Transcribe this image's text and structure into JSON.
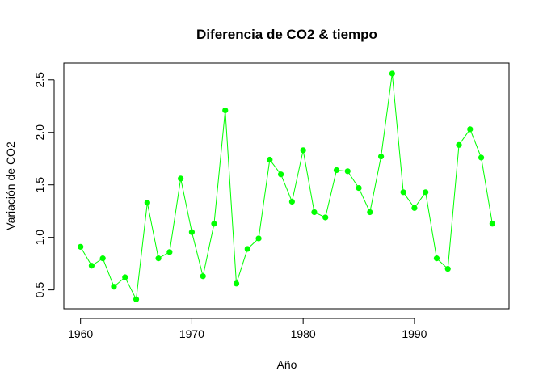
{
  "chart_data": {
    "type": "line",
    "title": "Diferencia de CO2 & tiempo",
    "xlabel": "Año",
    "ylabel": "Variación de CO2",
    "xlim": [
      1958.5,
      1998.5
    ],
    "ylim": [
      0.32,
      2.66
    ],
    "xticks": [
      1960,
      1970,
      1980,
      1990
    ],
    "yticks": [
      0.5,
      1.0,
      1.5,
      2.0,
      2.5
    ],
    "xtick_labels": [
      "1960",
      "1970",
      "1980",
      "1990"
    ],
    "ytick_labels": [
      "0.5",
      "1.0",
      "1.5",
      "2.0",
      "2.5"
    ],
    "grid": false,
    "series_color": "#00ff00",
    "series": [
      {
        "x": [
          1960,
          1961,
          1962,
          1963,
          1964,
          1965,
          1966,
          1967,
          1968,
          1969,
          1970,
          1971,
          1972,
          1973,
          1974,
          1975,
          1976,
          1977,
          1978,
          1979,
          1980,
          1981,
          1982,
          1983,
          1984,
          1985,
          1986,
          1987,
          1988,
          1989,
          1990,
          1991,
          1992,
          1993,
          1994,
          1995,
          1996,
          1997
        ],
        "values": [
          0.91,
          0.73,
          0.8,
          0.53,
          0.62,
          0.41,
          1.33,
          0.8,
          0.86,
          1.56,
          1.05,
          0.63,
          1.13,
          2.21,
          0.56,
          0.89,
          0.99,
          1.74,
          1.6,
          1.34,
          1.83,
          1.24,
          1.19,
          1.64,
          1.63,
          1.47,
          1.24,
          1.77,
          2.56,
          1.43,
          1.28,
          1.43,
          0.8,
          0.7,
          1.88,
          2.03,
          1.76,
          1.13
        ]
      }
    ]
  }
}
